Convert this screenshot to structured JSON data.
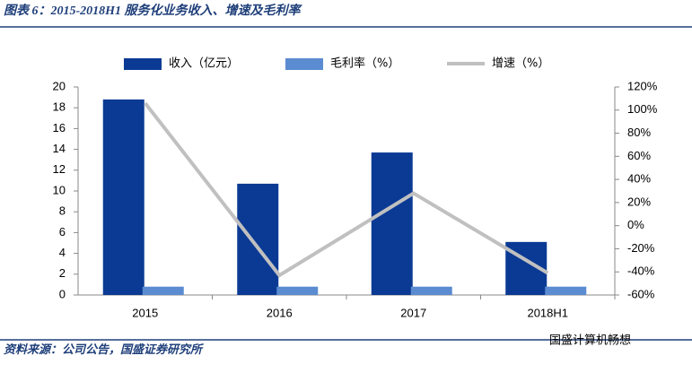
{
  "chart_data": {
    "type": "bar",
    "title": "图表 6：2015-2018H1 服务化业务收入、增速及毛利率",
    "source": "资料来源：公司公告，国盛证券研究所",
    "watermark": "国盛计算机畅想",
    "categories": [
      "2015",
      "2016",
      "2017",
      "2018H1"
    ],
    "series": [
      {
        "name": "收入（亿元）",
        "type": "bar",
        "axis": "y",
        "color": "#0b3a94",
        "values": [
          18.8,
          10.7,
          13.7,
          5.1
        ]
      },
      {
        "name": "毛利率（%）",
        "type": "bar",
        "axis": "y",
        "color": "#5b8bd0",
        "values": [
          0.8,
          0.8,
          0.8,
          0.8
        ]
      },
      {
        "name": "增速（%）",
        "type": "line",
        "axis": "y2",
        "color": "#c0c0c0",
        "values": [
          106,
          -43,
          28,
          -41
        ]
      }
    ],
    "ylim": [
      0,
      20
    ],
    "yticks": [
      0,
      2,
      4,
      6,
      8,
      10,
      12,
      14,
      16,
      18,
      20
    ],
    "y2lim": [
      -60,
      120
    ],
    "y2ticks": [
      {
        "value": -60,
        "label": "-60%"
      },
      {
        "value": -40,
        "label": "-40%"
      },
      {
        "value": -20,
        "label": "-20%"
      },
      {
        "value": 0,
        "label": "0%"
      },
      {
        "value": 20,
        "label": "20%"
      },
      {
        "value": 40,
        "label": "40%"
      },
      {
        "value": 60,
        "label": "60%"
      },
      {
        "value": 80,
        "label": "80%"
      },
      {
        "value": 100,
        "label": "100%"
      },
      {
        "value": 120,
        "label": "120%"
      }
    ],
    "grid": false
  }
}
